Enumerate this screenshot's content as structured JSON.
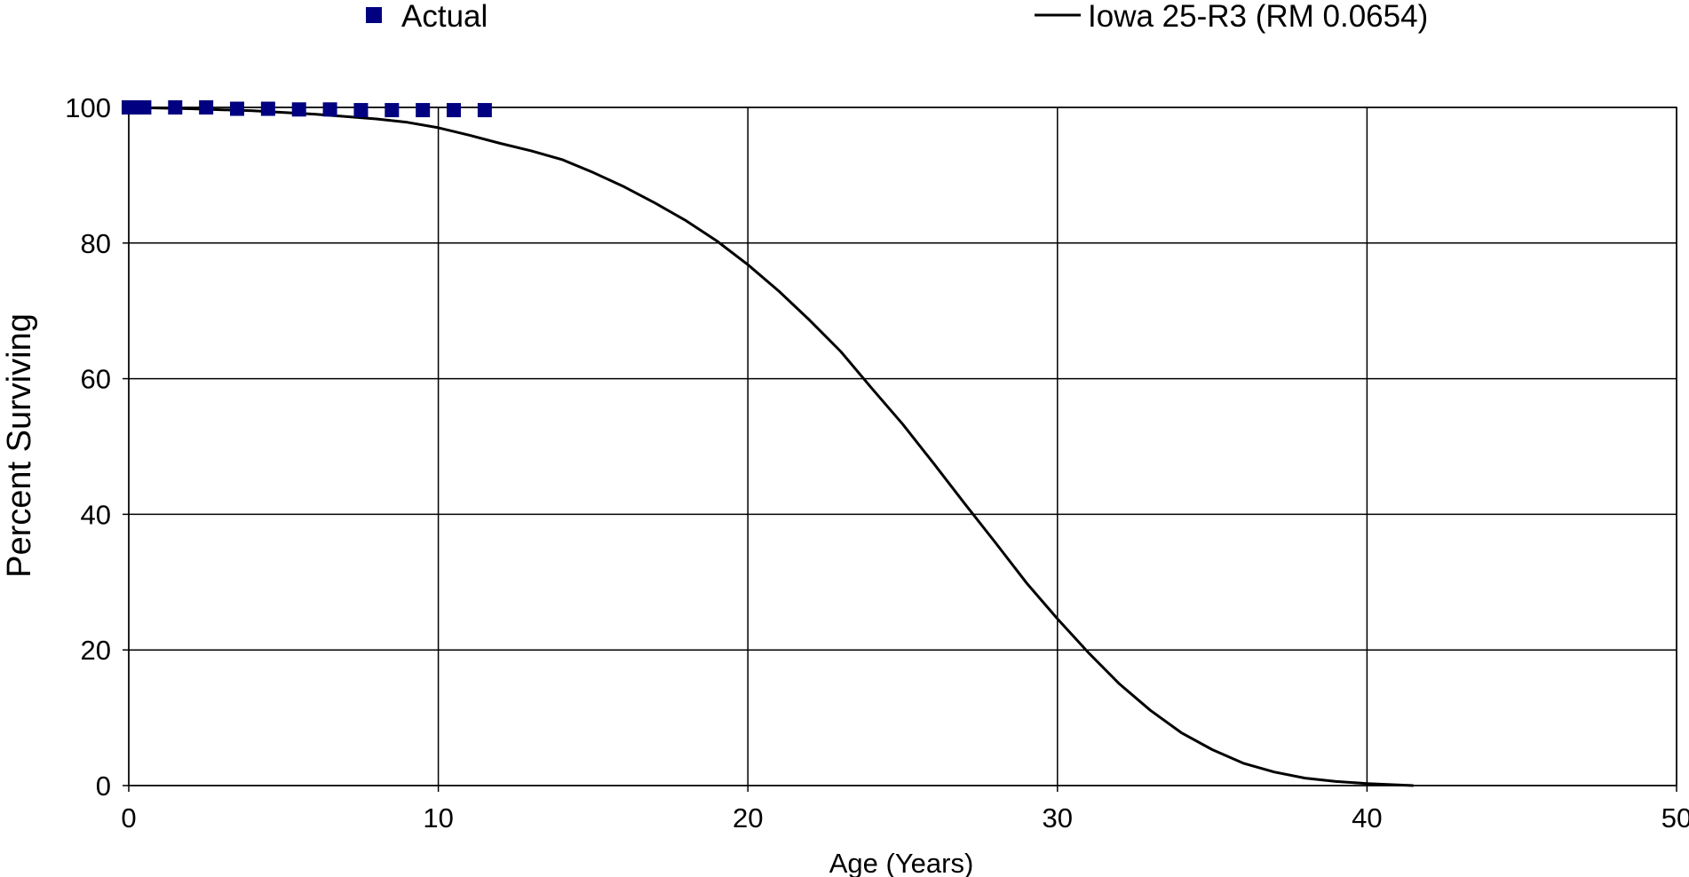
{
  "chart_data": {
    "type": "scatter",
    "xlabel": "Age (Years)",
    "ylabel": "Percent Surviving",
    "xlim": [
      0,
      50
    ],
    "ylim": [
      0,
      100
    ],
    "x_ticks": [
      "0",
      "10",
      "20",
      "30",
      "40",
      "50"
    ],
    "y_ticks": [
      "0",
      "20",
      "40",
      "60",
      "80",
      "100"
    ],
    "grid": true,
    "legend_position": "top",
    "series": [
      {
        "name": "Actual",
        "type": "scatter",
        "marker": "square",
        "color": "#000080",
        "x": [
          0.0,
          0.25,
          0.5,
          1.5,
          2.5,
          3.5,
          4.5,
          5.5,
          6.5,
          7.5,
          8.5,
          9.5,
          10.5,
          11.5
        ],
        "y": [
          100.0,
          100.0,
          100.0,
          100.0,
          100.0,
          99.8,
          99.8,
          99.7,
          99.7,
          99.6,
          99.6,
          99.6,
          99.6,
          99.6
        ]
      },
      {
        "name": "Iowa 25-R3 (RM 0.0654)",
        "type": "line",
        "color": "#000000",
        "x": [
          0,
          2,
          4,
          6,
          8,
          9,
          10,
          11,
          12,
          13,
          14,
          15,
          16,
          17,
          18,
          19,
          20,
          21,
          22,
          23,
          24,
          25,
          26,
          27,
          28,
          29,
          30,
          31,
          32,
          33,
          34,
          35,
          36,
          37,
          38,
          39,
          40,
          41,
          41.5
        ],
        "y": [
          100,
          99.8,
          99.5,
          99.0,
          98.3,
          97.8,
          97.0,
          95.9,
          94.7,
          93.6,
          92.3,
          90.4,
          88.3,
          85.9,
          83.3,
          80.3,
          76.8,
          72.9,
          68.6,
          64.0,
          58.6,
          53.3,
          47.5,
          41.6,
          35.8,
          29.9,
          24.6,
          19.6,
          15.0,
          11.1,
          7.8,
          5.3,
          3.3,
          2.0,
          1.1,
          0.6,
          0.3,
          0.1,
          0.0
        ]
      }
    ]
  }
}
